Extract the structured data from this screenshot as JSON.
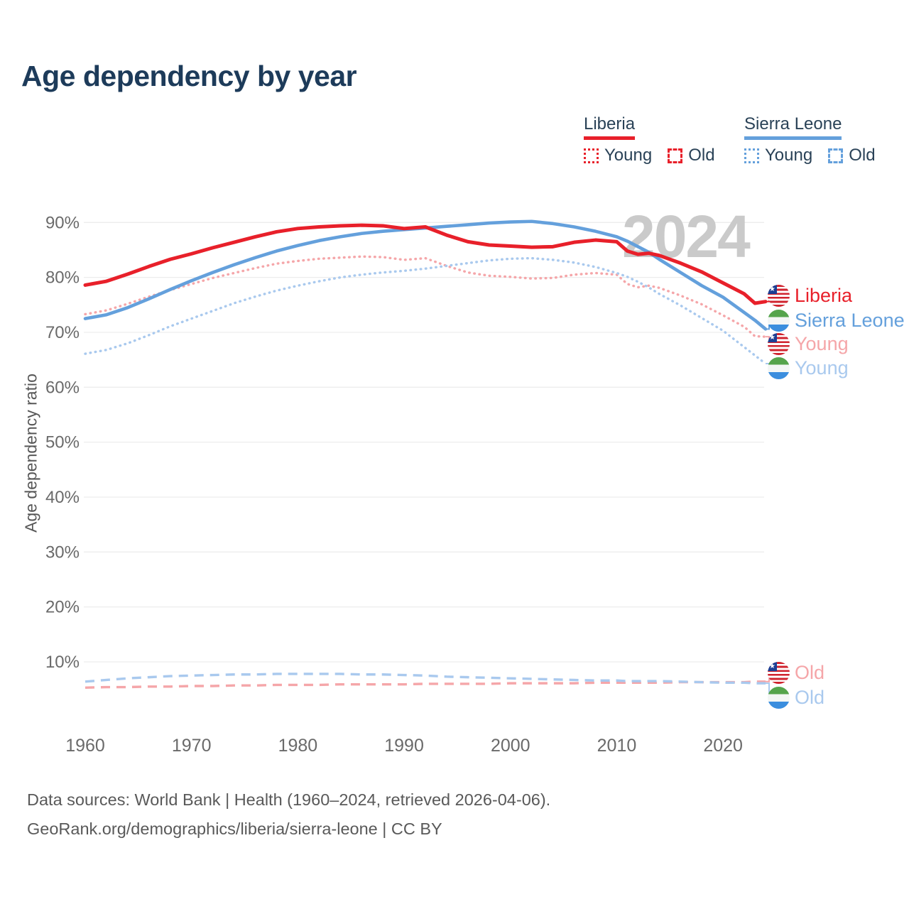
{
  "title": "Age dependency by year",
  "watermark": "2024",
  "legend": {
    "groups": [
      {
        "name": "Liberia",
        "color": "#e8202a",
        "items": [
          {
            "label": "Young",
            "pattern": "dotted"
          },
          {
            "label": "Old",
            "pattern": "dashed"
          }
        ]
      },
      {
        "name": "Sierra Leone",
        "color": "#64a0dc",
        "items": [
          {
            "label": "Young",
            "pattern": "dotted"
          },
          {
            "label": "Old",
            "pattern": "dashed"
          }
        ]
      }
    ]
  },
  "flags": {
    "liberia": {
      "stripe": "#d0232e",
      "white": "#ffffff",
      "canton": "#1c3f94",
      "star": "#ffffff"
    },
    "sierra_leone": {
      "green": "#55a44c",
      "white": "#f3f6f5",
      "blue": "#3b8ede"
    }
  },
  "footer": {
    "line1": "Data sources: World Bank | Health (1960–2024, retrieved 2026-04-06).",
    "line2": "GeoRank.org/demographics/liberia/sierra-leone | CC BY"
  },
  "chart_data": {
    "type": "line",
    "title": "Age dependency by year",
    "xlabel": "",
    "ylabel": "Age dependency ratio",
    "ylim": [
      0,
      95
    ],
    "grid": "horizontal",
    "legend_position": "top-right",
    "y_ticks": [
      90,
      80,
      70,
      60,
      50,
      40,
      30,
      20,
      10
    ],
    "y_tick_suffix": "%",
    "x_ticks": [
      1960,
      1970,
      1980,
      1990,
      2000,
      2010,
      2020
    ],
    "x": [
      1960,
      1962,
      1964,
      1966,
      1968,
      1970,
      1972,
      1974,
      1976,
      1978,
      1980,
      1982,
      1984,
      1986,
      1988,
      1990,
      1992,
      1994,
      1996,
      1998,
      2000,
      2002,
      2004,
      2006,
      2008,
      2010,
      2011,
      2012,
      2013,
      2014,
      2016,
      2018,
      2020,
      2022,
      2023,
      2024
    ],
    "series": [
      {
        "id": "liberia-total",
        "name": "Liberia — total",
        "color": "#e8202a",
        "style": "solid",
        "width": 5,
        "end_label": {
          "text": "Liberia",
          "flag": "liberia"
        },
        "values": [
          78.6,
          79.3,
          80.6,
          82,
          83.3,
          84.3,
          85.4,
          86.4,
          87.4,
          88.3,
          88.9,
          89.2,
          89.4,
          89.5,
          89.4,
          88.9,
          89.2,
          87.7,
          86.5,
          85.9,
          85.7,
          85.5,
          85.6,
          86.4,
          86.8,
          86.5,
          84.8,
          84.2,
          84.4,
          84,
          82.6,
          81,
          79,
          77,
          75.3,
          75.6
        ]
      },
      {
        "id": "sierra-leone-total",
        "name": "Sierra Leone — total",
        "color": "#64a0dc",
        "style": "solid",
        "width": 4.6,
        "end_label": {
          "text": "Sierra Leone",
          "flag": "sierra_leone"
        },
        "values": [
          72.5,
          73.2,
          74.5,
          76.1,
          77.8,
          79.4,
          80.9,
          82.3,
          83.6,
          84.8,
          85.8,
          86.7,
          87.4,
          88,
          88.4,
          88.7,
          89,
          89.3,
          89.6,
          89.9,
          90.1,
          90.2,
          89.8,
          89.2,
          88.4,
          87.4,
          86.6,
          85.6,
          84.6,
          83.3,
          80.9,
          78.5,
          76.4,
          73.6,
          72.2,
          70.6
        ]
      },
      {
        "id": "liberia-young",
        "name": "Liberia — young",
        "color": "#f5a6a9",
        "style": "dotted",
        "width": 3.4,
        "end_label": {
          "text": "Young",
          "flag": "liberia"
        },
        "values": [
          73.3,
          74,
          75.2,
          76.5,
          77.7,
          78.8,
          79.9,
          80.8,
          81.7,
          82.5,
          83,
          83.4,
          83.6,
          83.8,
          83.7,
          83.2,
          83.5,
          82.1,
          80.9,
          80.3,
          80.1,
          79.8,
          79.9,
          80.5,
          80.8,
          80.5,
          78.8,
          78.2,
          78.5,
          78.1,
          76.7,
          75.1,
          73.1,
          71,
          69.3,
          69.2
        ]
      },
      {
        "id": "sierra-leone-young",
        "name": "Sierra Leone — young",
        "color": "#a9c9ee",
        "style": "dotted",
        "width": 3.4,
        "end_label": {
          "text": "Young",
          "flag": "sierra_leone"
        },
        "values": [
          66.1,
          66.8,
          68,
          69.5,
          71.1,
          72.5,
          73.9,
          75.3,
          76.5,
          77.6,
          78.5,
          79.3,
          80,
          80.5,
          80.9,
          81.2,
          81.6,
          82.1,
          82.6,
          83.1,
          83.4,
          83.5,
          83.2,
          82.7,
          81.9,
          80.8,
          80.1,
          79.2,
          78.2,
          77,
          74.9,
          72.6,
          70.3,
          67.3,
          65.8,
          64.3
        ]
      },
      {
        "id": "liberia-old",
        "name": "Liberia — old",
        "color": "#f5a6a9",
        "style": "dashed",
        "width": 3.4,
        "end_label": {
          "text": "Old",
          "flag": "liberia"
        },
        "values": [
          5.3,
          5.4,
          5.4,
          5.5,
          5.5,
          5.6,
          5.6,
          5.7,
          5.7,
          5.8,
          5.8,
          5.8,
          5.9,
          5.9,
          5.9,
          5.9,
          6,
          6,
          6,
          6,
          6.1,
          6.1,
          6.1,
          6.1,
          6.2,
          6.2,
          6.2,
          6.2,
          6.2,
          6.2,
          6.3,
          6.3,
          6.3,
          6.3,
          6.4,
          6.4
        ]
      },
      {
        "id": "sierra-leone-old",
        "name": "Sierra Leone — old",
        "color": "#a9c9ee",
        "style": "dashed",
        "width": 3.4,
        "end_label": {
          "text": "Old",
          "flag": "sierra_leone"
        },
        "values": [
          6.4,
          6.7,
          7,
          7.2,
          7.4,
          7.5,
          7.6,
          7.7,
          7.7,
          7.8,
          7.8,
          7.8,
          7.8,
          7.7,
          7.7,
          7.6,
          7.5,
          7.3,
          7.2,
          7.1,
          7,
          6.9,
          6.8,
          6.7,
          6.6,
          6.6,
          6.5,
          6.5,
          6.5,
          6.5,
          6.4,
          6.3,
          6.2,
          6.2,
          6.1,
          6.1
        ]
      }
    ]
  }
}
